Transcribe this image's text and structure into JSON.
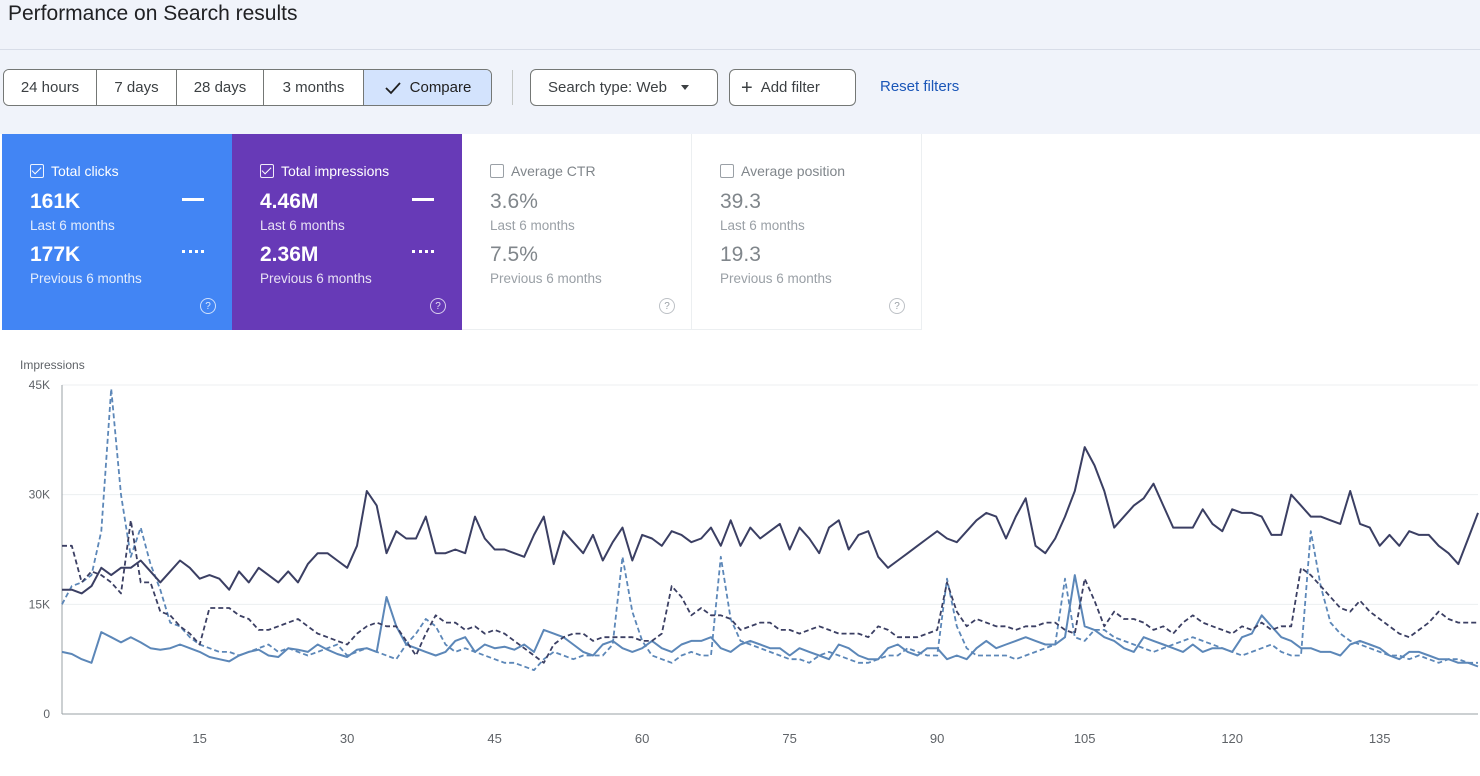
{
  "page": {
    "title": "Performance on Search results"
  },
  "toolbar": {
    "ranges": [
      "24 hours",
      "7 days",
      "28 days",
      "3 months"
    ],
    "compare_label": "Compare",
    "search_type_label": "Search type: Web",
    "add_filter_label": "Add filter",
    "reset_filters_label": "Reset filters"
  },
  "metrics": {
    "clicks": {
      "label": "Total clicks",
      "value": "161K",
      "period": "Last 6 months",
      "prev_value": "177K",
      "prev_period": "Previous 6 months",
      "checked": true
    },
    "impressions": {
      "label": "Total impressions",
      "value": "4.46M",
      "period": "Last 6 months",
      "prev_value": "2.36M",
      "prev_period": "Previous 6 months",
      "checked": true
    },
    "ctr": {
      "label": "Average CTR",
      "value": "3.6%",
      "period": "Last 6 months",
      "prev_value": "7.5%",
      "prev_period": "Previous 6 months",
      "checked": false
    },
    "position": {
      "label": "Average position",
      "value": "39.3",
      "period": "Last 6 months",
      "prev_value": "19.3",
      "prev_period": "Previous 6 months",
      "checked": false
    }
  },
  "colors": {
    "clicks": "#4285f4",
    "impressions": "#673ab7",
    "impressions_line": "#3b3f63",
    "clicks_line": "#5c87b8",
    "accent_link": "#1a56b8"
  },
  "chart_data": {
    "type": "line",
    "ylabel": "Impressions",
    "ylim": [
      0,
      45000
    ],
    "xlim": [
      1,
      145
    ],
    "y_ticks": [
      "0",
      "15K",
      "30K",
      "45K"
    ],
    "x_ticks": [
      15,
      30,
      45,
      60,
      75,
      90,
      105,
      120,
      135
    ],
    "series": [
      {
        "name": "Total impressions - Last 6 months",
        "style": "solid-dark",
        "values": [
          17000,
          17000,
          16500,
          17500,
          20000,
          19000,
          20000,
          20000,
          21000,
          19500,
          18000,
          19500,
          21000,
          20000,
          18500,
          19000,
          18500,
          17000,
          19500,
          18000,
          20000,
          19000,
          18000,
          19500,
          18000,
          20500,
          22000,
          22000,
          21000,
          20000,
          23000,
          30500,
          28500,
          22000,
          25000,
          24000,
          24000,
          27000,
          22000,
          22000,
          22500,
          22000,
          27000,
          24000,
          22500,
          22500,
          22000,
          21500,
          24500,
          27000,
          20500,
          25000,
          23500,
          22000,
          24500,
          21000,
          23500,
          25500,
          21000,
          24500,
          24000,
          23000,
          25000,
          24500,
          23500,
          24000,
          25500,
          23000,
          26500,
          23000,
          25500,
          24000,
          25000,
          26000,
          22500,
          25500,
          24000,
          22000,
          25500,
          26500,
          22500,
          24500,
          25000,
          21500,
          20000,
          21000,
          22000,
          23000,
          24000,
          25000,
          24000,
          23500,
          25000,
          26500,
          27500,
          27000,
          24000,
          27000,
          29500,
          23000,
          22000,
          24000,
          27000,
          30500,
          36500,
          34000,
          30500,
          25500,
          27000,
          28500,
          29500,
          31500,
          28500,
          25500,
          25500,
          25500,
          28000,
          26000,
          25000,
          28000,
          27500,
          27500,
          27000,
          24500,
          24500,
          30000,
          28500,
          27000,
          27000,
          26500,
          26000,
          30500,
          26000,
          25500,
          23000,
          24500,
          23000,
          25000,
          24500,
          24500,
          23000,
          22000,
          20500,
          24000,
          27500
        ]
      },
      {
        "name": "Total impressions - Previous 6 months",
        "style": "dashed-dark",
        "values": [
          23000,
          23000,
          18000,
          19500,
          19000,
          18000,
          16500,
          26500,
          18000,
          18000,
          14000,
          13500,
          12000,
          11000,
          9500,
          14500,
          14500,
          14500,
          13500,
          13000,
          11500,
          11500,
          12000,
          12500,
          13000,
          12000,
          11000,
          10500,
          10000,
          9500,
          11000,
          12000,
          12500,
          12000,
          12000,
          10000,
          8000,
          11000,
          13500,
          12500,
          12500,
          11500,
          12000,
          11000,
          11500,
          11000,
          10000,
          9000,
          8000,
          7000,
          9500,
          10500,
          11000,
          11000,
          10000,
          10500,
          10500,
          10500,
          10500,
          10000,
          10000,
          11000,
          17500,
          16000,
          13500,
          14500,
          13500,
          13500,
          13000,
          11500,
          12000,
          12500,
          12500,
          11500,
          11500,
          11000,
          11500,
          12000,
          11500,
          11000,
          11000,
          11000,
          10500,
          12000,
          11500,
          10500,
          10500,
          10500,
          11000,
          11500,
          18000,
          14000,
          12000,
          13000,
          12500,
          12000,
          12000,
          11500,
          12000,
          12000,
          12500,
          12500,
          11500,
          11000,
          18500,
          15500,
          12000,
          14000,
          13000,
          13000,
          12500,
          11500,
          12000,
          11000,
          12500,
          13500,
          12500,
          12000,
          11500,
          11000,
          12000,
          11500,
          12500,
          11500,
          12000,
          12000,
          20000,
          19000,
          17500,
          16000,
          14500,
          14000,
          15500,
          14000,
          13000,
          12000,
          11000,
          10500,
          11500,
          12500,
          14000,
          13000,
          12500,
          12500,
          12500
        ]
      },
      {
        "name": "Total clicks - Last 6 months",
        "style": "solid-light",
        "values": [
          8500,
          8200,
          7500,
          7000,
          11200,
          10500,
          9800,
          10500,
          9800,
          9000,
          8800,
          9000,
          9500,
          9000,
          8500,
          7800,
          7500,
          7200,
          8000,
          8500,
          8800,
          8000,
          7800,
          9000,
          8800,
          8500,
          9500,
          8800,
          8200,
          7800,
          8800,
          9000,
          8500,
          16000,
          12000,
          9500,
          9000,
          8500,
          8000,
          8500,
          10000,
          10500,
          8500,
          9500,
          9000,
          9200,
          8800,
          9500,
          8500,
          11500,
          11000,
          10500,
          9500,
          8500,
          8000,
          9500,
          10000,
          9000,
          8500,
          9000,
          10000,
          9000,
          8500,
          9500,
          10000,
          10000,
          10500,
          9000,
          8500,
          9500,
          10000,
          9500,
          9000,
          9000,
          8000,
          9000,
          8500,
          8000,
          7500,
          9500,
          9000,
          8000,
          7500,
          7500,
          9000,
          9500,
          8500,
          8000,
          9000,
          9000,
          7500,
          8000,
          7500,
          9000,
          10000,
          9000,
          9500,
          10000,
          10500,
          10000,
          9500,
          9500,
          10500,
          19000,
          12000,
          11500,
          10500,
          10000,
          9000,
          8500,
          10500,
          10000,
          9500,
          9000,
          8500,
          9500,
          8500,
          9000,
          9000,
          8500,
          10500,
          11000,
          13500,
          12000,
          10500,
          10000,
          9000,
          9000,
          8500,
          8500,
          8000,
          9500,
          10000,
          9500,
          9000,
          8000,
          7500,
          8500,
          8500,
          8000,
          7500,
          7500,
          7000,
          7000,
          6500
        ]
      },
      {
        "name": "Total clicks - Previous 6 months",
        "style": "dashed-light",
        "values": [
          15000,
          17500,
          18000,
          19000,
          25000,
          44500,
          30000,
          21500,
          25500,
          20500,
          17000,
          12500,
          12000,
          10500,
          9500,
          9000,
          8500,
          8500,
          8000,
          8500,
          9000,
          9500,
          8500,
          9000,
          8500,
          8000,
          8500,
          9000,
          9500,
          8000,
          8500,
          9000,
          8500,
          8000,
          7500,
          9500,
          11000,
          13000,
          12000,
          9500,
          8500,
          9000,
          8500,
          8000,
          7500,
          7000,
          7000,
          6500,
          6000,
          7500,
          8500,
          8000,
          7500,
          8000,
          8000,
          8000,
          9500,
          21500,
          14000,
          10000,
          8000,
          7500,
          7000,
          8000,
          8500,
          8000,
          8000,
          21500,
          13000,
          10000,
          9500,
          9000,
          8500,
          8000,
          7500,
          7500,
          7000,
          8000,
          8500,
          8000,
          7500,
          7000,
          7000,
          7500,
          8000,
          8000,
          9000,
          8500,
          8000,
          8000,
          18500,
          12000,
          9000,
          8000,
          8000,
          8000,
          8000,
          7500,
          8000,
          8500,
          9000,
          9500,
          18500,
          10500,
          10000,
          11500,
          11500,
          10500,
          10000,
          9500,
          9000,
          8500,
          9000,
          9500,
          10000,
          10500,
          10000,
          9500,
          9000,
          8500,
          8000,
          8500,
          9000,
          9500,
          8500,
          8000,
          8000,
          25000,
          17500,
          12500,
          11000,
          10000,
          9500,
          9000,
          8500,
          8000,
          8000,
          7500,
          8000,
          7500,
          7000,
          7500,
          7500,
          7000,
          7000
        ]
      }
    ]
  }
}
